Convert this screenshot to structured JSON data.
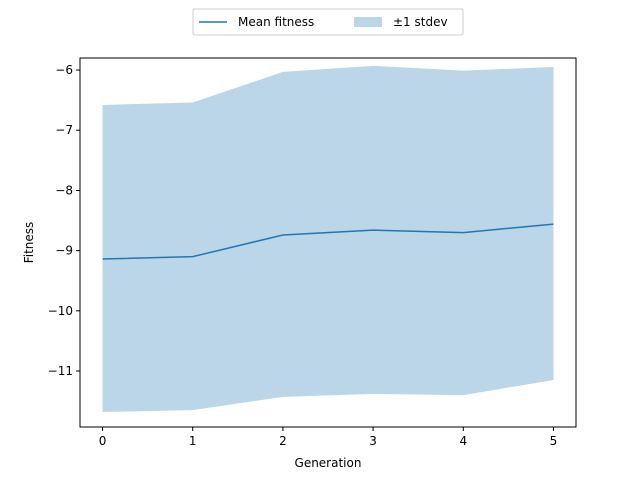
{
  "chart_data": {
    "type": "line",
    "title": "",
    "xlabel": "Generation",
    "ylabel": "Fitness",
    "x": [
      0,
      1,
      2,
      3,
      4,
      5
    ],
    "xlim": [
      -0.25,
      5.25
    ],
    "ylim": [
      -11.93,
      -5.8
    ],
    "xticks": [
      0,
      1,
      2,
      3,
      4,
      5
    ],
    "yticks": [
      -6,
      -7,
      -8,
      -9,
      -10,
      -11
    ],
    "ytick_labels": [
      "−6",
      "−7",
      "−8",
      "−9",
      "−10",
      "−11"
    ],
    "series": [
      {
        "name": "Mean fitness",
        "kind": "line",
        "color": "#1f77b4",
        "values": [
          -9.14,
          -9.1,
          -8.74,
          -8.66,
          -8.7,
          -8.56
        ]
      },
      {
        "name": "±1 stdev",
        "kind": "band",
        "color": "#1f77b4",
        "opacity": 0.3,
        "upper": [
          -6.58,
          -6.54,
          -6.03,
          -5.93,
          -6.01,
          -5.95
        ],
        "lower": [
          -11.68,
          -11.65,
          -11.43,
          -11.38,
          -11.4,
          -11.15
        ]
      }
    ],
    "legend": {
      "placement": "top-center",
      "columns": 2,
      "entries": [
        "Mean fitness",
        "±1 stdev"
      ]
    },
    "grid": false
  }
}
